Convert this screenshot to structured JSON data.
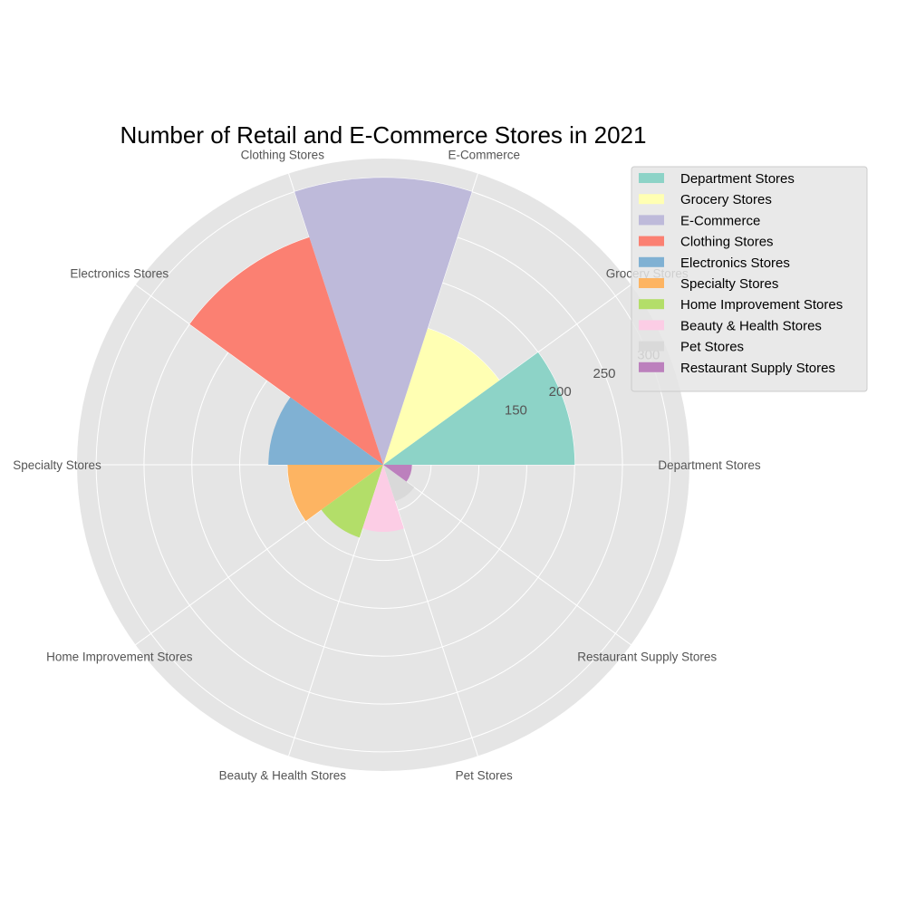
{
  "chart_data": {
    "type": "polar-bar",
    "title": "Number of Retail and E-Commerce Stores in 2021",
    "categories": [
      "Department Stores",
      "Grocery Stores",
      "E-Commerce",
      "Clothing Stores",
      "Electronics Stores",
      "Specialty Stores",
      "Home Improvement Stores",
      "Beauty & Health Stores",
      "Pet Stores",
      "Restaurant Supply Stores"
    ],
    "values": [
      200,
      150,
      300,
      250,
      120,
      100,
      80,
      70,
      40,
      30
    ],
    "colors": [
      "#8dd3c7",
      "#ffffb3",
      "#bebada",
      "#fb8072",
      "#80b1d3",
      "#fdb462",
      "#b3de69",
      "#fccde5",
      "#d9d9d9",
      "#bc80bd"
    ],
    "radial_ticks": [
      "150",
      "200",
      "250",
      "300"
    ],
    "radial_tick_values": [
      150,
      200,
      250,
      300
    ],
    "rmax": 320,
    "grid": true,
    "legend_position": "top-right"
  }
}
